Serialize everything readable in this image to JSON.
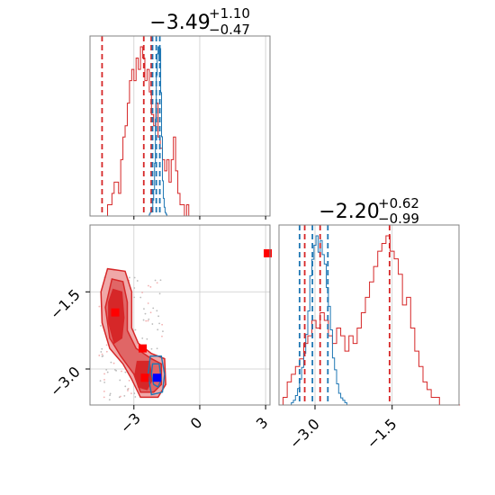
{
  "colors": {
    "red": "#d62728",
    "red_fill": "#e06666",
    "red_fill_light": "#f0a8a8",
    "blue": "#1f77b4",
    "marker_red": "#ff0000",
    "marker_blue": "#0000ff",
    "grid": "#cccccc",
    "axis": "#808080"
  },
  "chart_data": {
    "type": "corner",
    "titles": {
      "p1": {
        "value": "−3.49",
        "sup": "+1.10",
        "sub": "−0.47"
      },
      "p2": {
        "value": "−2.20",
        "sup": "+0.62",
        "sub": "−0.99"
      }
    },
    "x_ticks_p1": [
      -3,
      0,
      3
    ],
    "x_tick_labels_p1": [
      "−3",
      "0",
      "3"
    ],
    "y_ticks_p2": [
      -1.5,
      -3.0
    ],
    "y_tick_labels_p2": [
      "−1.5",
      "−3.0"
    ],
    "x_ticks_p2": [
      -3.0,
      -1.5
    ],
    "x_tick_labels_p2": [
      "−3.0",
      "−1.5"
    ],
    "xlim_p1": [
      -5.0,
      3.2
    ],
    "xlim_p2": [
      -3.7,
      -0.2
    ],
    "hist_p1_red": {
      "bin_start": -5.0,
      "bin_width": 0.1,
      "counts": [
        0,
        0,
        0,
        0,
        0,
        0,
        0,
        0,
        1,
        1,
        2,
        3,
        3,
        2,
        5,
        7,
        8,
        10,
        12,
        13,
        12,
        14,
        13,
        15,
        14,
        12,
        13,
        11,
        9,
        8,
        10,
        7,
        6,
        5,
        4,
        5,
        3,
        5,
        7,
        4,
        2,
        1,
        1,
        0,
        1,
        0,
        0,
        0,
        0,
        0,
        0,
        0,
        0,
        0,
        0,
        0,
        0,
        0,
        0,
        0,
        0,
        0,
        0,
        0,
        0,
        0,
        0,
        0,
        0,
        0,
        0,
        0,
        0,
        0,
        0,
        0,
        0,
        0,
        0,
        0,
        0,
        0
      ]
    },
    "hist_p1_blue": {
      "bin_start": -2.5,
      "bin_width": 0.04,
      "counts": [
        0,
        0,
        0,
        0,
        0,
        1,
        2,
        3,
        5,
        9,
        15,
        30,
        55,
        80,
        92,
        96,
        88,
        95,
        70,
        45,
        20,
        10,
        5,
        2,
        1,
        0,
        0,
        0,
        0
      ]
    },
    "hist_p2_red": {
      "bin_start": -3.7,
      "bin_width": 0.08,
      "counts": [
        0,
        1,
        3,
        4,
        5,
        6,
        8,
        9,
        11,
        10,
        12,
        11,
        9,
        8,
        10,
        9,
        7,
        9,
        8,
        10,
        12,
        14,
        16,
        18,
        20,
        21,
        22,
        20,
        19,
        17,
        13,
        14,
        10,
        7,
        5,
        3,
        2,
        1,
        1,
        0,
        0,
        0,
        0,
        0
      ]
    },
    "hist_p2_blue": {
      "bin_start": -3.5,
      "bin_width": 0.04,
      "counts": [
        0,
        1,
        2,
        4,
        7,
        11,
        16,
        22,
        30,
        40,
        55,
        62,
        68,
        72,
        65,
        70,
        64,
        60,
        50,
        42,
        32,
        20,
        15,
        9,
        5,
        3,
        2,
        1,
        0
      ]
    },
    "red_dashed_p1": [
      -4.45,
      -2.55,
      -2.21
    ],
    "blue_dashed_p1": [
      -2.15,
      -1.98,
      -1.82
    ],
    "red_dashed_p2": [
      -3.2,
      -2.9,
      -1.55
    ],
    "blue_dashed_p2": [
      -3.3,
      -3.05,
      -2.75
    ],
    "markers": [
      {
        "x": -3.85,
        "y": -1.9,
        "color": "red"
      },
      {
        "x": -2.6,
        "y": -2.6,
        "color": "red"
      },
      {
        "x": -2.5,
        "y": -3.17,
        "color": "red"
      },
      {
        "x": -1.95,
        "y": -3.17,
        "color": "blue"
      },
      {
        "x": 3.1,
        "y": -0.75,
        "color": "red"
      }
    ]
  }
}
